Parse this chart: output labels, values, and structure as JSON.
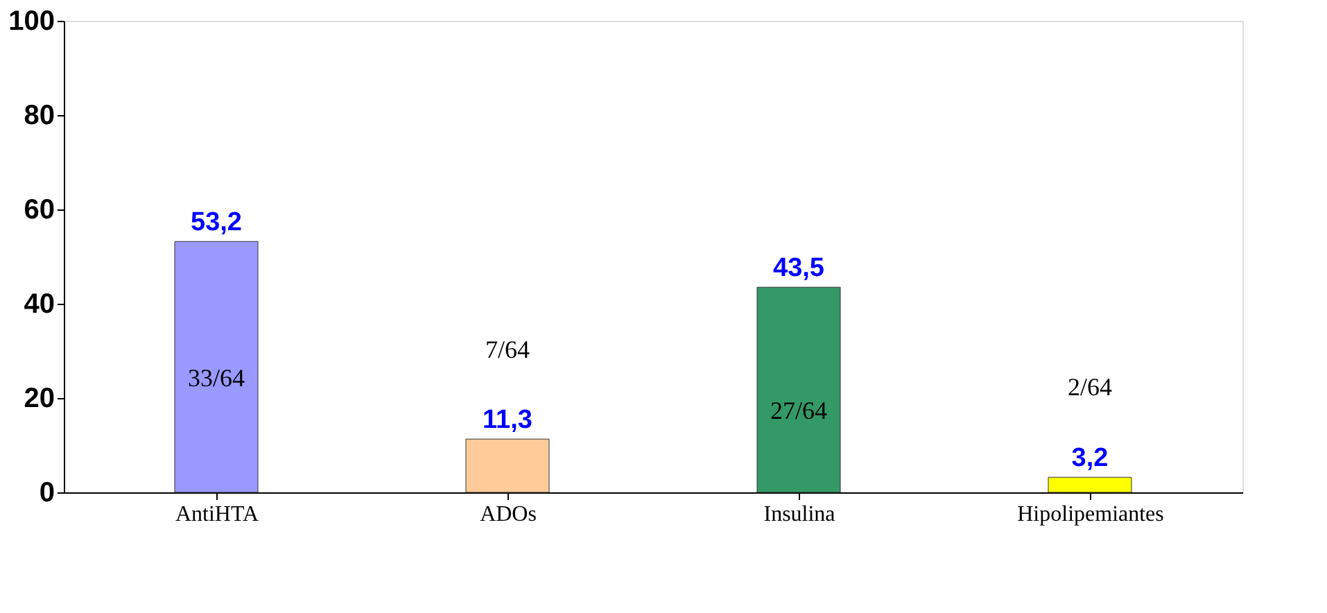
{
  "chart_data": {
    "type": "bar",
    "categories": [
      "AntiHTA",
      "ADOs",
      "Insulina",
      "Hipolipemiantes"
    ],
    "values": [
      53.2,
      11.3,
      43.5,
      3.2
    ],
    "colors": [
      "#9999ff",
      "#ffcc99",
      "#339966",
      "#ffff00"
    ],
    "value_labels": [
      "53,2",
      "11,3",
      "43,5",
      "3,2"
    ],
    "ylim": [
      0,
      100
    ],
    "yticks": [
      0,
      20,
      40,
      60,
      80,
      100
    ],
    "grid": false,
    "annotations": [
      "33/64",
      "7/64",
      "27/64",
      "2/64"
    ]
  }
}
